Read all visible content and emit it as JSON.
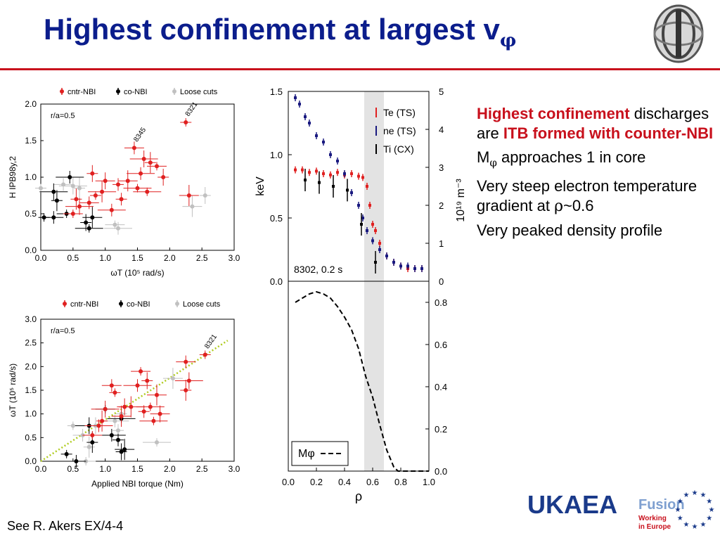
{
  "title": {
    "main": "Highest confinement at largest v",
    "subscript": "φ"
  },
  "bullets": {
    "b1_red1": "Highest confinement",
    "b1_plain": " discharges are ",
    "b1_red2": "ITB formed with counter-NBI",
    "b2_pre": "M",
    "b2_sub": "φ",
    "b2_post": " approaches 1 in core",
    "b3_pre": "Very steep electron temperature gradient at ",
    "b3_sym": "ρ",
    "b3_post": "~0.6",
    "b4": "Very peaked density profile"
  },
  "footnote": "See R. Akers EX/4-4",
  "logo": {
    "ukaea": "UKAEA",
    "fusion": "Fusion",
    "tag1": "Working",
    "tag2": "in Europe"
  },
  "colors": {
    "title": "#0b1d8c",
    "red": "#e02020",
    "navy": "#1a1a80",
    "grey": "#c0c0c0",
    "accent_rule": "#c8101c"
  },
  "chart_data": [
    {
      "type": "scatter",
      "panel": "top-left",
      "legend": [
        "cntr-NBI",
        "co-NBI",
        "Loose cuts"
      ],
      "annotation": "r/a=0.5",
      "xlabel": "ωT (10⁵ rad/s)",
      "ylabel": "H IPB98y,2",
      "xlim": [
        0,
        3.0
      ],
      "ylim": [
        0,
        2.0
      ],
      "xticks": [
        "0.0",
        "0.5",
        "1.0",
        "1.5",
        "2.0",
        "2.5",
        "3.0"
      ],
      "yticks": [
        "0.0",
        "0.5",
        "1.0",
        "1.5",
        "2.0"
      ],
      "point_labels": [
        {
          "text": "8321",
          "x": 2.25,
          "y": 1.75
        },
        {
          "text": "8345",
          "x": 1.45,
          "y": 1.4
        }
      ],
      "series": [
        {
          "name": "cntr-NBI",
          "color": "#e02020",
          "points": [
            [
              2.25,
              1.75
            ],
            [
              1.45,
              1.4
            ],
            [
              1.6,
              1.25
            ],
            [
              1.7,
              1.2
            ],
            [
              1.8,
              1.15
            ],
            [
              1.55,
              1.05
            ],
            [
              1.9,
              1.0
            ],
            [
              2.3,
              0.75
            ],
            [
              1.5,
              0.85
            ],
            [
              1.2,
              0.9
            ],
            [
              1.0,
              0.95
            ],
            [
              0.95,
              0.8
            ],
            [
              0.85,
              0.75
            ],
            [
              0.75,
              0.65
            ],
            [
              0.6,
              0.6
            ],
            [
              0.55,
              0.7
            ],
            [
              0.5,
              0.5
            ],
            [
              1.1,
              0.55
            ],
            [
              0.8,
              1.05
            ],
            [
              1.35,
              0.95
            ],
            [
              1.65,
              0.8
            ],
            [
              1.25,
              0.7
            ]
          ]
        },
        {
          "name": "co-NBI",
          "color": "#000000",
          "points": [
            [
              0.05,
              0.45
            ],
            [
              0.2,
              0.45
            ],
            [
              0.2,
              0.8
            ],
            [
              0.25,
              0.68
            ],
            [
              0.4,
              0.5
            ],
            [
              0.45,
              1.0
            ],
            [
              0.7,
              0.38
            ],
            [
              0.8,
              0.45
            ],
            [
              0.75,
              0.3
            ]
          ]
        },
        {
          "name": "Loose cuts",
          "color": "#c0c0c0",
          "points": [
            [
              0.0,
              0.85
            ],
            [
              0.35,
              0.9
            ],
            [
              0.5,
              0.88
            ],
            [
              0.6,
              0.85
            ],
            [
              1.15,
              0.35
            ],
            [
              1.2,
              0.3
            ],
            [
              2.55,
              0.75
            ],
            [
              2.35,
              0.6
            ]
          ]
        }
      ]
    },
    {
      "type": "scatter",
      "panel": "bottom-left",
      "legend": [
        "cntr-NBI",
        "co-NBI",
        "Loose cuts"
      ],
      "annotation": "r/a=0.5",
      "xlabel": "Applied NBI torque (Nm)",
      "ylabel": "ωT (10⁵ rad/s)",
      "xlim": [
        0,
        3.0
      ],
      "ylim": [
        0,
        3.0
      ],
      "xticks": [
        "0.0",
        "0.5",
        "1.0",
        "1.5",
        "2.0",
        "2.5",
        "3.0"
      ],
      "yticks": [
        "0.0",
        "0.5",
        "1.0",
        "1.5",
        "2.0",
        "2.5",
        "3.0"
      ],
      "point_labels": [
        {
          "text": "8321",
          "x": 2.55,
          "y": 2.25
        }
      ],
      "fit_line": {
        "x": [
          0.0,
          2.9
        ],
        "y": [
          0.0,
          2.55
        ],
        "color": "#b0cc20"
      },
      "series": [
        {
          "name": "cntr-NBI",
          "color": "#e02020",
          "points": [
            [
              2.55,
              2.25
            ],
            [
              2.25,
              2.1
            ],
            [
              2.3,
              1.7
            ],
            [
              2.25,
              1.5
            ],
            [
              1.55,
              1.9
            ],
            [
              1.5,
              1.6
            ],
            [
              1.65,
              1.7
            ],
            [
              1.8,
              1.4
            ],
            [
              1.7,
              1.15
            ],
            [
              1.6,
              1.05
            ],
            [
              1.85,
              1.0
            ],
            [
              1.4,
              1.15
            ],
            [
              1.15,
              1.45
            ],
            [
              1.1,
              1.6
            ],
            [
              1.0,
              1.1
            ],
            [
              0.95,
              0.85
            ],
            [
              0.8,
              0.55
            ],
            [
              0.9,
              0.75
            ],
            [
              1.3,
              1.15
            ],
            [
              1.25,
              0.95
            ],
            [
              1.75,
              0.85
            ]
          ]
        },
        {
          "name": "co-NBI",
          "color": "#000000",
          "points": [
            [
              0.4,
              0.15
            ],
            [
              0.55,
              0.0
            ],
            [
              0.75,
              0.75
            ],
            [
              0.8,
              0.4
            ],
            [
              1.0,
              1.1
            ],
            [
              1.1,
              0.55
            ],
            [
              1.25,
              0.2
            ],
            [
              1.3,
              0.25
            ],
            [
              1.25,
              0.9
            ],
            [
              1.2,
              0.45
            ]
          ]
        },
        {
          "name": "Loose cuts",
          "color": "#c0c0c0",
          "points": [
            [
              0.5,
              0.75
            ],
            [
              0.65,
              0.55
            ],
            [
              0.85,
              0.75
            ],
            [
              0.75,
              0.3
            ],
            [
              0.7,
              0.0
            ],
            [
              1.15,
              0.85
            ],
            [
              1.25,
              1.0
            ],
            [
              2.05,
              1.75
            ],
            [
              1.8,
              0.4
            ],
            [
              1.2,
              0.65
            ]
          ]
        }
      ]
    },
    {
      "type": "scatter",
      "panel": "right-top",
      "legend": [
        "Te (TS)",
        "ne (TS)",
        "Ti (CX)"
      ],
      "annotation": "8302, 0.2 s",
      "xlabel": "ρ",
      "ylabel": "keV",
      "ylabel_right": "10¹⁹ m⁻³",
      "xlim": [
        0,
        1.0
      ],
      "ylim": [
        0,
        1.5
      ],
      "ylim_right": [
        0,
        5
      ],
      "yticks": [
        "0.0",
        "0.5",
        "1.0",
        "1.5"
      ],
      "yticks_right": [
        "0",
        "1",
        "2",
        "3",
        "4",
        "5"
      ],
      "shaded_band_rho": [
        0.54,
        0.68
      ],
      "series": [
        {
          "name": "Te (TS)",
          "color": "#e02020",
          "x": [
            0.05,
            0.1,
            0.15,
            0.2,
            0.25,
            0.3,
            0.35,
            0.4,
            0.45,
            0.5,
            0.53,
            0.56,
            0.58,
            0.6,
            0.62,
            0.65,
            0.7,
            0.75,
            0.8,
            0.85,
            0.9,
            0.95
          ],
          "y": [
            0.88,
            0.88,
            0.86,
            0.87,
            0.85,
            0.84,
            0.86,
            0.84,
            0.85,
            0.83,
            0.82,
            0.75,
            0.6,
            0.45,
            0.4,
            0.3,
            0.2,
            0.15,
            0.12,
            0.1,
            0.1,
            0.1
          ]
        },
        {
          "name": "ne (TS)",
          "color": "#1a1a80",
          "x": [
            0.05,
            0.08,
            0.12,
            0.15,
            0.2,
            0.25,
            0.3,
            0.35,
            0.4,
            0.45,
            0.5,
            0.53,
            0.56,
            0.6,
            0.65,
            0.7,
            0.75,
            0.8,
            0.85,
            0.9,
            0.95
          ],
          "y": [
            1.45,
            1.4,
            1.3,
            1.25,
            1.15,
            1.1,
            1.0,
            0.95,
            0.85,
            0.7,
            0.6,
            0.5,
            0.4,
            0.32,
            0.25,
            0.2,
            0.15,
            0.12,
            0.12,
            0.1,
            0.1
          ]
        },
        {
          "name": "Ti (CX)",
          "color": "#000000",
          "x": [
            0.12,
            0.22,
            0.32,
            0.42,
            0.52,
            0.62
          ],
          "y": [
            0.8,
            0.78,
            0.75,
            0.72,
            0.45,
            0.15
          ]
        }
      ]
    },
    {
      "type": "line",
      "panel": "right-bottom",
      "legend": [
        "Mφ"
      ],
      "xlabel": "ρ",
      "xlim": [
        0,
        1.0
      ],
      "ylim": [
        0,
        1.0
      ],
      "xticks": [
        "0.0",
        "0.2",
        "0.4",
        "0.6",
        "0.8",
        "1.0"
      ],
      "yticks_right": [
        "0.0",
        "0.2",
        "0.4",
        "0.6",
        "0.8"
      ],
      "series": [
        {
          "name": "Mφ",
          "color": "#000000",
          "x": [
            0.05,
            0.1,
            0.15,
            0.2,
            0.25,
            0.3,
            0.35,
            0.4,
            0.45,
            0.5,
            0.55,
            0.6,
            0.65,
            0.7,
            0.75,
            0.78,
            0.8,
            0.85,
            0.9,
            0.95,
            1.0
          ],
          "y": [
            0.8,
            0.82,
            0.84,
            0.85,
            0.84,
            0.82,
            0.78,
            0.73,
            0.67,
            0.58,
            0.45,
            0.35,
            0.22,
            0.1,
            0.02,
            0.0,
            0.0,
            0.0,
            0.0,
            0.0,
            0.0
          ]
        }
      ]
    }
  ]
}
